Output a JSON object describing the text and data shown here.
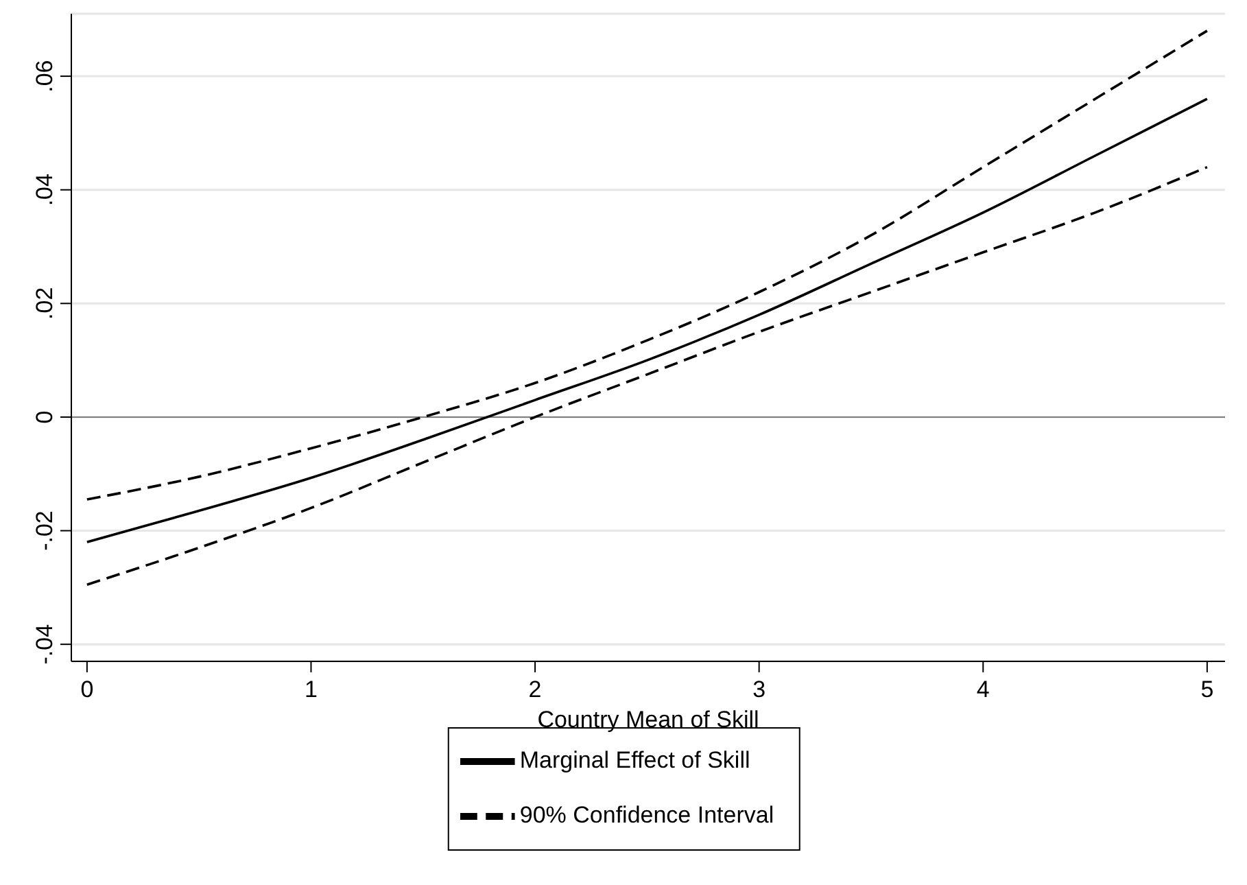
{
  "chart_data": {
    "type": "line",
    "xlabel": "Country Mean of Skill",
    "x": [
      0,
      0.5,
      1,
      1.5,
      2,
      2.5,
      3,
      3.5,
      4,
      4.5,
      5
    ],
    "series": [
      {
        "name": "Marginal Effect of Skill",
        "color": "#000000",
        "line_style": "solid",
        "values": [
          -0.022,
          -0.0165,
          -0.0107,
          -0.004,
          0.003,
          0.01,
          0.018,
          0.027,
          0.036,
          0.046,
          0.056
        ]
      },
      {
        "name": "90% Confidence Interval",
        "color": "#000000",
        "line_style": "dashed",
        "values": [
          -0.0145,
          -0.0105,
          -0.0055,
          0.0,
          0.006,
          0.0135,
          0.022,
          0.032,
          0.044,
          0.056,
          0.068
        ]
      },
      {
        "color": "#000000",
        "line_style": "dashed",
        "values": [
          -0.0295,
          -0.023,
          -0.016,
          -0.008,
          0.0,
          0.0075,
          0.015,
          0.022,
          0.029,
          0.036,
          0.044
        ]
      }
    ],
    "xlim": [
      -0.07,
      5.08
    ],
    "xticks": [
      0,
      1,
      2,
      3,
      4,
      5
    ],
    "ylim": [
      -0.043,
      0.071
    ],
    "yticks": [
      {
        "value": -0.04,
        "label": "-.04"
      },
      {
        "value": -0.02,
        "label": "-.02"
      },
      {
        "value": 0,
        "label": "0"
      },
      {
        "value": 0.02,
        "label": ".02"
      },
      {
        "value": 0.04,
        "label": ".04"
      },
      {
        "value": 0.06,
        "label": ".06"
      }
    ],
    "ref_lines": [
      {
        "axis": "y",
        "value": 0,
        "color": "#808080"
      }
    ],
    "grid": "y",
    "legend": "bottom",
    "marker": "none"
  }
}
